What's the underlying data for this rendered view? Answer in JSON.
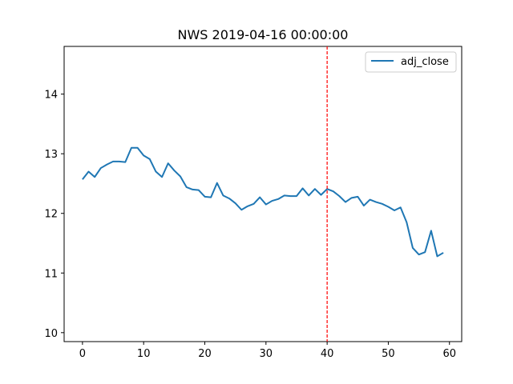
{
  "chart_data": {
    "type": "line",
    "title": "NWS 2019-04-16 00:00:00",
    "xlabel": "",
    "ylabel": "",
    "xlim": [
      -3,
      62
    ],
    "ylim": [
      9.85,
      14.8
    ],
    "xticks": [
      0,
      10,
      20,
      30,
      40,
      50,
      60
    ],
    "yticks": [
      10,
      11,
      12,
      13,
      14
    ],
    "grid": false,
    "legend_position": "top-right",
    "series": [
      {
        "name": "adj_close",
        "color": "#1f77b4",
        "x": [
          0,
          1,
          2,
          3,
          4,
          5,
          6,
          7,
          8,
          9,
          10,
          11,
          12,
          13,
          14,
          15,
          16,
          17,
          18,
          19,
          20,
          21,
          22,
          23,
          24,
          25,
          26,
          27,
          28,
          29,
          30,
          31,
          32,
          33,
          34,
          35,
          36,
          37,
          38,
          39,
          40,
          41,
          42,
          43,
          44,
          45,
          46,
          47,
          48,
          49,
          50,
          51,
          52,
          53,
          54,
          55,
          56,
          57,
          58,
          59
        ],
        "values": [
          12.57,
          12.7,
          12.61,
          12.76,
          12.82,
          12.87,
          12.87,
          12.86,
          13.1,
          13.1,
          12.97,
          12.91,
          12.7,
          12.61,
          12.84,
          12.72,
          12.62,
          12.44,
          12.4,
          12.39,
          12.28,
          12.27,
          12.51,
          12.3,
          12.25,
          12.17,
          12.06,
          12.12,
          12.16,
          12.27,
          12.15,
          12.21,
          12.24,
          12.3,
          12.29,
          12.29,
          12.42,
          12.3,
          12.41,
          12.31,
          12.41,
          12.37,
          12.29,
          12.19,
          12.26,
          12.28,
          12.13,
          12.23,
          12.19,
          12.16,
          12.11,
          12.05,
          12.1,
          11.85,
          11.42,
          11.31,
          11.35,
          11.71,
          11.28,
          11.34
        ]
      }
    ],
    "vline": {
      "x": 40,
      "color": "#ff0000",
      "style": "dashed"
    }
  }
}
